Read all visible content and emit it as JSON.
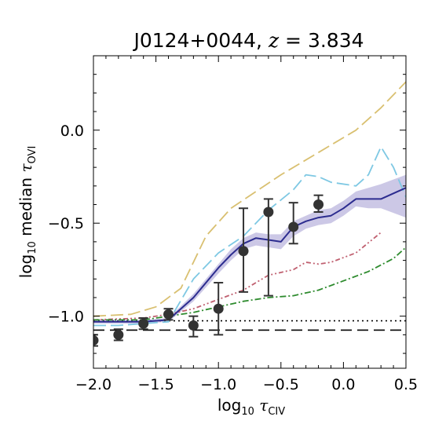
{
  "chart_data": {
    "type": "line",
    "title": {
      "object": "J0124+0044",
      "sep": ", ",
      "z_var": "z",
      "z_eq": " = 3.834"
    },
    "xlabel": {
      "pre": "log",
      "sub": "10",
      "sym": "τ",
      "ion": "CIV"
    },
    "ylabel": {
      "pre": "log",
      "sub": "10",
      "word": "median",
      "sym": "τ",
      "ion": "OVI"
    },
    "xlim": [
      -2.0,
      0.5
    ],
    "ylim": [
      -1.28,
      0.4
    ],
    "xticks": [
      -2.0,
      -1.5,
      -1.0,
      -0.5,
      0.0,
      0.5
    ],
    "xtick_labels": [
      "−2.0",
      "−1.5",
      "−1.0",
      "−0.5",
      "0.0",
      "0.5"
    ],
    "yticks": [
      -1.0,
      -0.5,
      0.0
    ],
    "ytick_labels": [
      "−1.0",
      "−0.5",
      "0.0"
    ],
    "grid": false,
    "series": [
      {
        "color": "#2c2c8f",
        "style": "solid",
        "x": [
          -2.0,
          -1.8,
          -1.6,
          -1.4,
          -1.2,
          -1.0,
          -0.9,
          -0.8,
          -0.7,
          -0.6,
          -0.5,
          -0.4,
          -0.3,
          -0.2,
          -0.1,
          0.0,
          0.1,
          0.2,
          0.3,
          0.5
        ],
        "y": [
          -1.03,
          -1.03,
          -1.03,
          -1.02,
          -0.9,
          -0.74,
          -0.67,
          -0.61,
          -0.58,
          -0.59,
          -0.6,
          -0.52,
          -0.49,
          -0.47,
          -0.46,
          -0.42,
          -0.37,
          -0.37,
          -0.37,
          -0.31
        ],
        "band_lo": [
          -1.04,
          -1.04,
          -1.04,
          -1.03,
          -0.92,
          -0.77,
          -0.7,
          -0.64,
          -0.62,
          -0.63,
          -0.64,
          -0.57,
          -0.53,
          -0.51,
          -0.5,
          -0.46,
          -0.41,
          -0.42,
          -0.42,
          -0.47
        ],
        "band_hi": [
          -1.02,
          -1.02,
          -1.02,
          -1.01,
          -0.88,
          -0.72,
          -0.64,
          -0.58,
          -0.55,
          -0.56,
          -0.56,
          -0.49,
          -0.46,
          -0.43,
          -0.42,
          -0.38,
          -0.33,
          -0.31,
          -0.29,
          -0.24
        ]
      },
      {
        "color": "#d9c071",
        "style": "dashed",
        "x": [
          -2.0,
          -1.7,
          -1.5,
          -1.3,
          -1.1,
          -0.9,
          -0.7,
          -0.5,
          -0.3,
          -0.1,
          0.1,
          0.3,
          0.5
        ],
        "y": [
          -1.0,
          -0.99,
          -0.95,
          -0.85,
          -0.57,
          -0.42,
          -0.33,
          -0.24,
          -0.16,
          -0.08,
          0.0,
          0.12,
          0.26
        ]
      },
      {
        "color": "#7ec8e3",
        "style": "dashed",
        "x": [
          -2.0,
          -1.8,
          -1.6,
          -1.4,
          -1.2,
          -1.0,
          -0.8,
          -0.6,
          -0.4,
          -0.3,
          -0.2,
          -0.1,
          0.1,
          0.2,
          0.3,
          0.4,
          0.5
        ],
        "y": [
          -1.05,
          -1.05,
          -1.04,
          -1.03,
          -0.8,
          -0.66,
          -0.57,
          -0.43,
          -0.32,
          -0.24,
          -0.25,
          -0.28,
          -0.3,
          -0.24,
          -0.09,
          -0.2,
          -0.36
        ]
      },
      {
        "color": "#c06070",
        "style": "dashdotdot",
        "x": [
          -2.0,
          -1.6,
          -1.4,
          -1.2,
          -1.0,
          -0.8,
          -0.6,
          -0.4,
          -0.3,
          -0.2,
          -0.1,
          0.1,
          0.3
        ],
        "y": [
          -1.02,
          -1.01,
          -0.99,
          -0.96,
          -0.91,
          -0.86,
          -0.78,
          -0.75,
          -0.71,
          -0.72,
          -0.71,
          -0.66,
          -0.55
        ]
      },
      {
        "color": "#2e8b2e",
        "style": "dashdot",
        "x": [
          -2.0,
          -1.6,
          -1.4,
          -1.2,
          -1.0,
          -0.8,
          -0.6,
          -0.4,
          -0.2,
          0.0,
          0.2,
          0.4,
          0.5
        ],
        "y": [
          -1.02,
          -1.02,
          -1.0,
          -0.98,
          -0.95,
          -0.92,
          -0.9,
          -0.89,
          -0.86,
          -0.81,
          -0.76,
          -0.69,
          -0.63
        ]
      }
    ],
    "points": {
      "x": [
        -2.0,
        -1.8,
        -1.6,
        -1.4,
        -1.2,
        -1.0,
        -0.8,
        -0.6,
        -0.4,
        -0.2
      ],
      "y": [
        -1.13,
        -1.1,
        -1.04,
        -0.99,
        -1.05,
        -0.96,
        -0.65,
        -0.44,
        -0.52,
        -0.4
      ],
      "err_lo": [
        0.03,
        0.03,
        0.03,
        0.03,
        0.06,
        0.14,
        0.22,
        0.45,
        0.09,
        0.04
      ],
      "err_hi": [
        0.03,
        0.03,
        0.03,
        0.03,
        0.05,
        0.14,
        0.23,
        0.07,
        0.13,
        0.05
      ]
    },
    "hlines": [
      {
        "y": -1.025,
        "style": "dotted",
        "color": "#000000"
      },
      {
        "y": -1.075,
        "style": "dashed",
        "color": "#000000"
      }
    ]
  }
}
